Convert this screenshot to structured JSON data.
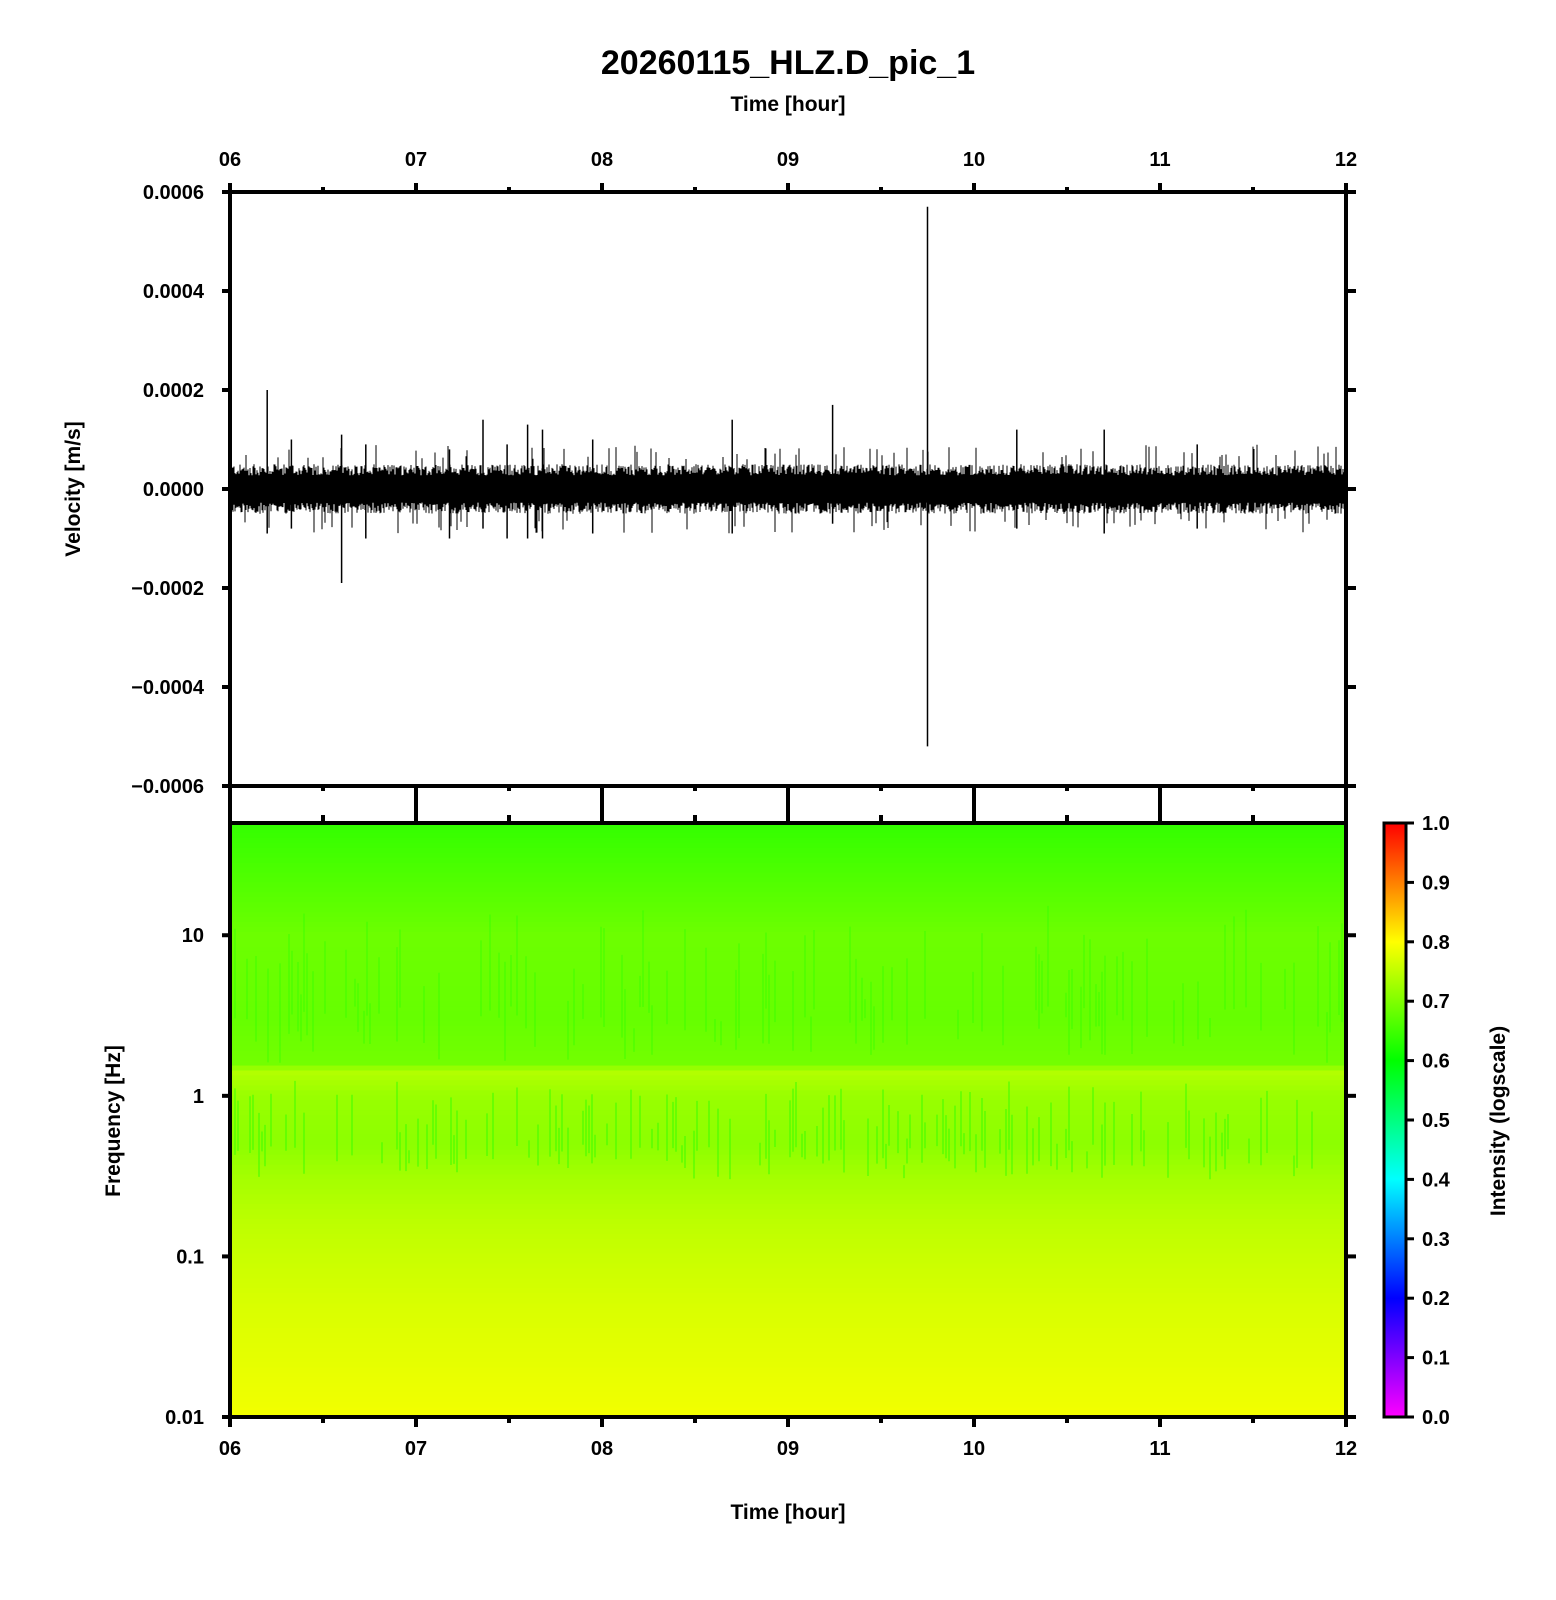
{
  "chart_data": [
    {
      "type": "line",
      "title": "20260115_HLZ.D_pic_1",
      "x_axis_top_label": "Time [hour]",
      "ylabel": "Velocity [m/s]",
      "x_ticks": [
        "06",
        "07",
        "08",
        "09",
        "10",
        "11",
        "12"
      ],
      "xlim_hours": [
        6,
        12
      ],
      "ylim": [
        -0.0006,
        0.0006
      ],
      "y_ticks": [
        "0.0006",
        "0.0004",
        "0.0002",
        "0.0000",
        "−0.0002",
        "−0.0004",
        "−0.0006"
      ],
      "y_tick_values": [
        0.0006,
        0.0004,
        0.0002,
        0,
        -0.0002,
        -0.0004,
        -0.0006
      ],
      "trace_color": "#000000",
      "noise_amplitude": 5e-05,
      "spikes": [
        {
          "t": 6.2,
          "min": -9e-05,
          "max": 0.0002
        },
        {
          "t": 6.33,
          "min": -8e-05,
          "max": 0.0001
        },
        {
          "t": 6.6,
          "min": -0.00019,
          "max": 0.00011
        },
        {
          "t": 6.73,
          "min": -0.0001,
          "max": 9e-05
        },
        {
          "t": 7.18,
          "min": -0.0001,
          "max": 8e-05
        },
        {
          "t": 7.36,
          "min": -8e-05,
          "max": 0.00014
        },
        {
          "t": 7.49,
          "min": -0.0001,
          "max": 9e-05
        },
        {
          "t": 7.6,
          "min": -0.0001,
          "max": 0.00013
        },
        {
          "t": 7.68,
          "min": -0.0001,
          "max": 0.00012
        },
        {
          "t": 7.95,
          "min": -9e-05,
          "max": 0.0001
        },
        {
          "t": 8.7,
          "min": -9e-05,
          "max": 0.00014
        },
        {
          "t": 9.24,
          "min": -7e-05,
          "max": 0.00017
        },
        {
          "t": 9.75,
          "min": -0.00052,
          "max": 0.00057
        },
        {
          "t": 10.23,
          "min": -8e-05,
          "max": 0.00012
        },
        {
          "t": 10.7,
          "min": -9e-05,
          "max": 0.00012
        },
        {
          "t": 11.2,
          "min": -8e-05,
          "max": 9e-05
        }
      ]
    },
    {
      "type": "heatmap",
      "xlabel": "Time [hour]",
      "ylabel": "Frequency [Hz]",
      "x_ticks": [
        "06",
        "07",
        "08",
        "09",
        "10",
        "11",
        "12"
      ],
      "xlim_hours": [
        6,
        12
      ],
      "y_scale": "log",
      "ylim_hz": [
        0.01,
        50
      ],
      "y_ticks": [
        "10",
        "1",
        "0.1",
        "0.01"
      ],
      "y_tick_values": [
        10,
        1,
        0.1,
        0.01
      ],
      "intensity_profile": [
        {
          "freq_hz": 0.01,
          "intensity": 0.79
        },
        {
          "freq_hz": 0.05,
          "intensity": 0.77
        },
        {
          "freq_hz": 0.15,
          "intensity": 0.75
        },
        {
          "freq_hz": 0.3,
          "intensity": 0.73
        },
        {
          "freq_hz": 0.5,
          "intensity": 0.71
        },
        {
          "freq_hz": 1.0,
          "intensity": 0.72
        },
        {
          "freq_hz": 1.4,
          "intensity": 0.74
        },
        {
          "freq_hz": 1.6,
          "intensity": 0.69
        },
        {
          "freq_hz": 3,
          "intensity": 0.68
        },
        {
          "freq_hz": 10,
          "intensity": 0.685
        },
        {
          "freq_hz": 50,
          "intensity": 0.64
        }
      ],
      "colorbar": {
        "label": "Intensity (logscale)",
        "range": [
          0,
          1
        ],
        "ticks": [
          "1.0",
          "0.9",
          "0.8",
          "0.7",
          "0.6",
          "0.5",
          "0.4",
          "0.3",
          "0.2",
          "0.1",
          "0.0"
        ],
        "tick_values": [
          1.0,
          0.9,
          0.8,
          0.7,
          0.6,
          0.5,
          0.4,
          0.3,
          0.2,
          0.1,
          0.0
        ],
        "colormap": [
          "#ff00ff",
          "#0000ff",
          "#00ffff",
          "#00ff00",
          "#ffff00",
          "#ff0000"
        ]
      }
    }
  ]
}
